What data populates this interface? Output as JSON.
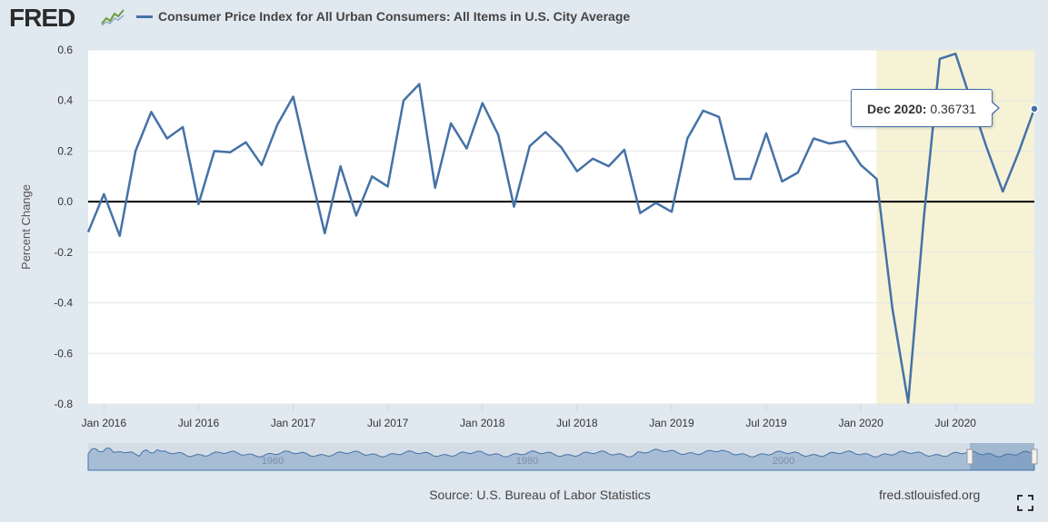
{
  "header": {
    "logo_text": "FRED",
    "logo_icon": "sparkline-icon",
    "series_title": "Consumer Price Index for All Urban Consumers: All Items in U.S. City Average"
  },
  "chart_data": {
    "type": "line",
    "title": "Consumer Price Index for All Urban Consumers: All Items in U.S. City Average",
    "ylabel": "Percent Change",
    "xlabel": "",
    "ylim": [
      -0.8,
      0.6
    ],
    "yticks": [
      "0.6",
      "0.4",
      "0.2",
      "0.0",
      "-0.2",
      "-0.4",
      "-0.6",
      "-0.8"
    ],
    "ytick_values": [
      0.6,
      0.4,
      0.2,
      0.0,
      -0.2,
      -0.4,
      -0.6,
      -0.8
    ],
    "xticks": [
      "Jan 2016",
      "Jul 2016",
      "Jan 2017",
      "Jul 2017",
      "Jan 2018",
      "Jul 2018",
      "Jan 2019",
      "Jul 2019",
      "Jan 2020",
      "Jul 2020"
    ],
    "xtick_dates": [
      "2016-01",
      "2016-07",
      "2017-01",
      "2017-07",
      "2018-01",
      "2018-07",
      "2019-01",
      "2019-07",
      "2020-01",
      "2020-07"
    ],
    "xlim": [
      "2015-12",
      "2020-12"
    ],
    "recession": {
      "start": "2020-02",
      "end": "2020-12",
      "color": "#f5f2d6"
    },
    "zero_line": true,
    "grid": true,
    "legend_position": "top-left",
    "line_color": "#4572a7",
    "series": [
      {
        "name": "Consumer Price Index for All Urban Consumers: All Items in U.S. City Average",
        "x": [
          "2015-12",
          "2016-01",
          "2016-02",
          "2016-03",
          "2016-04",
          "2016-05",
          "2016-06",
          "2016-07",
          "2016-08",
          "2016-09",
          "2016-10",
          "2016-11",
          "2016-12",
          "2017-01",
          "2017-02",
          "2017-03",
          "2017-04",
          "2017-05",
          "2017-06",
          "2017-07",
          "2017-08",
          "2017-09",
          "2017-10",
          "2017-11",
          "2017-12",
          "2018-01",
          "2018-02",
          "2018-03",
          "2018-04",
          "2018-05",
          "2018-06",
          "2018-07",
          "2018-08",
          "2018-09",
          "2018-10",
          "2018-11",
          "2018-12",
          "2019-01",
          "2019-02",
          "2019-03",
          "2019-04",
          "2019-05",
          "2019-06",
          "2019-07",
          "2019-08",
          "2019-09",
          "2019-10",
          "2019-11",
          "2019-12",
          "2020-01",
          "2020-02",
          "2020-03",
          "2020-04",
          "2020-05",
          "2020-06",
          "2020-07",
          "2020-08",
          "2020-09",
          "2020-10",
          "2020-11",
          "2020-12"
        ],
        "values": [
          -0.12,
          0.03,
          -0.135,
          0.2,
          0.355,
          0.25,
          0.295,
          -0.01,
          0.2,
          0.195,
          0.235,
          0.145,
          0.305,
          0.415,
          0.14,
          -0.125,
          0.14,
          -0.055,
          0.1,
          0.06,
          0.4,
          0.465,
          0.055,
          0.31,
          0.21,
          0.39,
          0.265,
          -0.02,
          0.22,
          0.275,
          0.215,
          0.12,
          0.17,
          0.14,
          0.205,
          -0.045,
          -0.005,
          -0.04,
          0.25,
          0.36,
          0.335,
          0.09,
          0.09,
          0.27,
          0.08,
          0.115,
          0.25,
          0.23,
          0.24,
          0.145,
          0.09,
          -0.425,
          -0.795,
          -0.06,
          0.565,
          0.585,
          0.395,
          0.21,
          0.04,
          0.195,
          0.36731
        ]
      }
    ],
    "tooltip": {
      "label": "Dec 2020:",
      "value": "0.36731"
    }
  },
  "navigator": {
    "labels": [
      "1960",
      "1980",
      "2000"
    ]
  },
  "footer": {
    "source": "Source: U.S. Bureau of Labor Statistics",
    "credit": "fred.stlouisfed.org",
    "fullscreen_icon": "fullscreen-icon"
  }
}
